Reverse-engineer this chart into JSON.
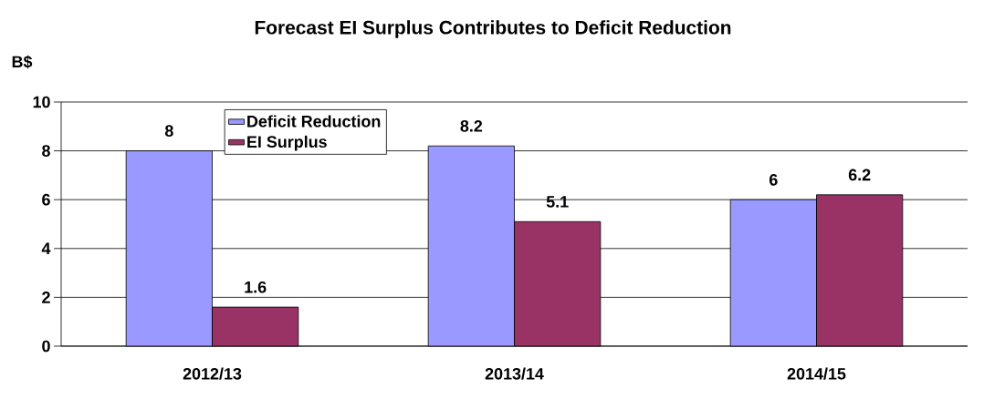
{
  "chart_data": {
    "type": "bar",
    "title": "Forecast EI Surplus Contributes to Deficit Reduction",
    "ylabel": "B$",
    "categories": [
      "2012/13",
      "2013/14",
      "2014/15"
    ],
    "series": [
      {
        "name": "Deficit Reduction",
        "color": "#9999ff",
        "values": [
          8,
          8.2,
          6
        ]
      },
      {
        "name": "EI Surplus",
        "color": "#993366",
        "values": [
          1.6,
          5.1,
          6.2
        ]
      }
    ],
    "ylim": [
      0,
      10
    ],
    "yticks": [
      0,
      2,
      4,
      6,
      8,
      10
    ],
    "grid": "y",
    "legend": "top left",
    "data_labels": true
  }
}
